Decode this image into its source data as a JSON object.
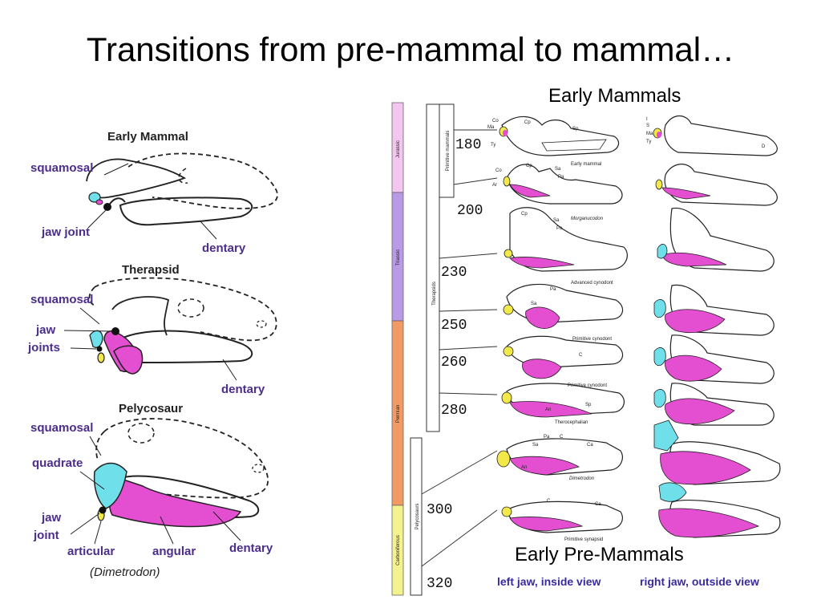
{
  "title": "Transitions from pre-mammal to mammal…",
  "headings": {
    "early_mammals": "Early Mammals",
    "early_pre_mammals": "Early Pre-Mammals"
  },
  "left_panel": {
    "early_mammal": {
      "title": "Early Mammal",
      "squamosal": "squamosal",
      "jaw_joint": "jaw joint",
      "dentary": "dentary"
    },
    "therapsid": {
      "title": "Therapsid",
      "squamosal": "squamosal",
      "jaw": "jaw",
      "joints": "joints",
      "dentary": "dentary"
    },
    "pelycosaur": {
      "title": "Pelycosaur",
      "squamosal": "squamosal",
      "quadrate": "quadrate",
      "jaw": "jaw",
      "joint": "joint",
      "articular": "articular",
      "angular": "angular",
      "dentary": "dentary",
      "genus": "(Dimetrodon)"
    }
  },
  "right_panel": {
    "periods": [
      "Jurassic",
      "Triassic",
      "Permian",
      "Carboniferous"
    ],
    "groups": [
      "Primitive mammals",
      "Therapsids",
      "Pelycosaurs"
    ],
    "ages": [
      "180",
      "200",
      "230",
      "250",
      "260",
      "280",
      "300",
      "320"
    ],
    "taxa": [
      "Early mammal",
      "Morganucodon",
      "Advanced cynodont",
      "Primitive cynodont",
      "Primitive cynodont",
      "Therocephalian",
      "Dimetrodon",
      "Primitive synapsid"
    ],
    "footer_left": "left jaw, inside view",
    "footer_right": "right jaw, outside view",
    "abbrev": {
      "co": "Co",
      "ma": "Ma",
      "ty": "Ty",
      "cp": "Cp",
      "sp": "Sp",
      "sa": "Sa",
      "pa": "Pa",
      "ar": "Ar",
      "an": "An",
      "c": "C",
      "q": "Q",
      "qj": "Qj",
      "d": "D",
      "i": "I",
      "s": "S",
      "ca": "Ca"
    }
  },
  "colors": {
    "magenta": "#e34fd0",
    "cyan": "#6fe0ea",
    "yellow": "#f2e84a",
    "jurassic": "#f3c6ef",
    "triassic": "#b99ae6",
    "permian": "#f29a63",
    "carboniferous": "#f4f28e",
    "label_purple": "#4b2d8c"
  }
}
